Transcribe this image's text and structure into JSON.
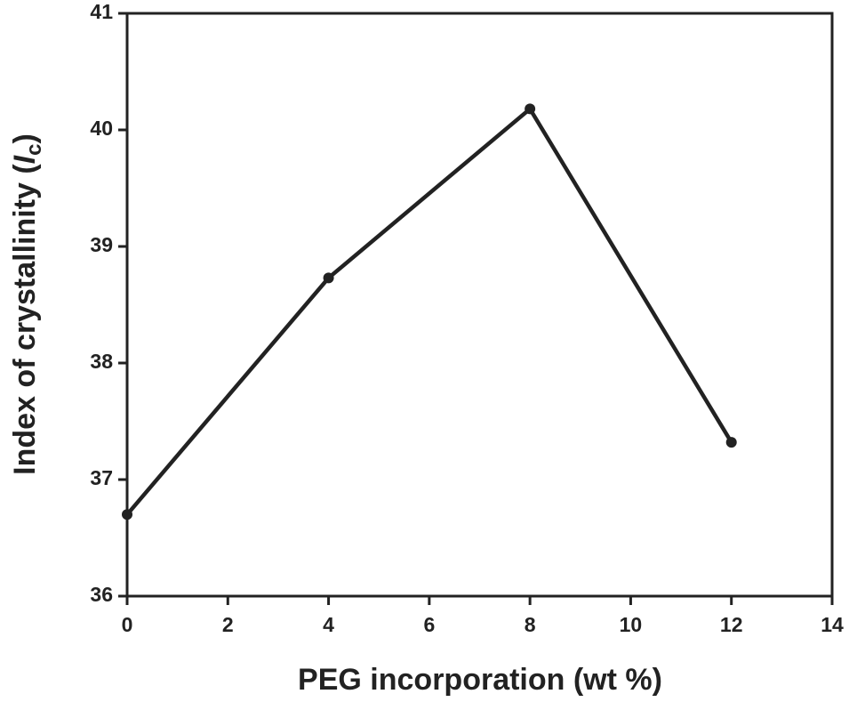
{
  "chart_data": {
    "type": "line",
    "xlabel": "PEG incorporation (wt %)",
    "ylabel": [
      "Index of crystallinity (",
      "I",
      "c",
      ")"
    ],
    "x": [
      0,
      4,
      8,
      12
    ],
    "series": [
      {
        "color": "#222222",
        "values": [
          36.7,
          38.73,
          40.18,
          37.32
        ]
      }
    ],
    "xlim": [
      0,
      14
    ],
    "xticks": [
      0,
      2,
      4,
      6,
      8,
      10,
      12,
      14
    ],
    "ylim": [
      36,
      41
    ],
    "yticks": [
      36,
      37,
      38,
      39,
      40,
      41
    ],
    "grid": false
  }
}
